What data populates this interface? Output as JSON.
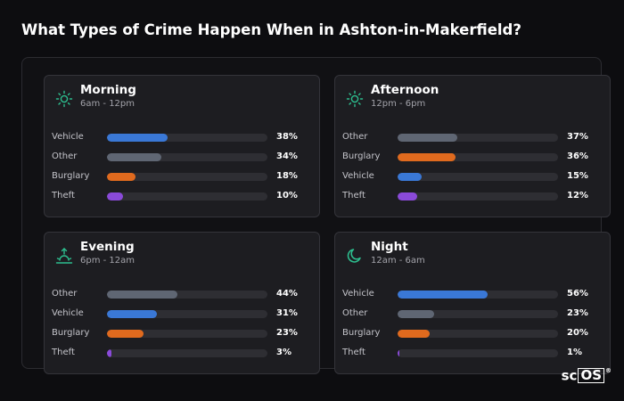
{
  "title": "What Types of Crime Happen When in Ashton-in-Makerfield?",
  "colors": {
    "Vehicle": "#3a78d6",
    "Other": "#5f6673",
    "Burglary": "#e06a1e",
    "Theft": "#8a4ad9",
    "icon": "#2dbf8f"
  },
  "cards": [
    {
      "title": "Morning",
      "subtitle": "6am - 12pm",
      "icon": "sun-icon",
      "rows": [
        {
          "label": "Vehicle",
          "value": 38,
          "display": "38%"
        },
        {
          "label": "Other",
          "value": 34,
          "display": "34%"
        },
        {
          "label": "Burglary",
          "value": 18,
          "display": "18%"
        },
        {
          "label": "Theft",
          "value": 10,
          "display": "10%"
        }
      ]
    },
    {
      "title": "Afternoon",
      "subtitle": "12pm - 6pm",
      "icon": "sun-icon",
      "rows": [
        {
          "label": "Other",
          "value": 37,
          "display": "37%"
        },
        {
          "label": "Burglary",
          "value": 36,
          "display": "36%"
        },
        {
          "label": "Vehicle",
          "value": 15,
          "display": "15%"
        },
        {
          "label": "Theft",
          "value": 12,
          "display": "12%"
        }
      ]
    },
    {
      "title": "Evening",
      "subtitle": "6pm - 12am",
      "icon": "sunset-icon",
      "rows": [
        {
          "label": "Other",
          "value": 44,
          "display": "44%"
        },
        {
          "label": "Vehicle",
          "value": 31,
          "display": "31%"
        },
        {
          "label": "Burglary",
          "value": 23,
          "display": "23%"
        },
        {
          "label": "Theft",
          "value": 3,
          "display": "3%"
        }
      ]
    },
    {
      "title": "Night",
      "subtitle": "12am - 6am",
      "icon": "moon-icon",
      "rows": [
        {
          "label": "Vehicle",
          "value": 56,
          "display": "56%"
        },
        {
          "label": "Other",
          "value": 23,
          "display": "23%"
        },
        {
          "label": "Burglary",
          "value": 20,
          "display": "20%"
        },
        {
          "label": "Theft",
          "value": 1,
          "display": "1%"
        }
      ]
    }
  ],
  "brand": {
    "pre": "sc",
    "box": "OS",
    "reg": "®"
  }
}
